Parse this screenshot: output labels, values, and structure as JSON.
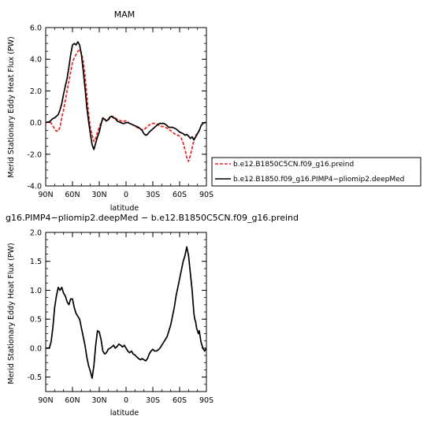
{
  "chart_data": [
    {
      "type": "line",
      "title": "MAM",
      "xlabel": "latitude",
      "ylabel": "Merid Stationary Eddy Heat Flux (PW)",
      "xlim": [
        90,
        -90
      ],
      "ylim": [
        -4.0,
        6.0
      ],
      "xticks": [
        90,
        60,
        30,
        0,
        -30,
        -60,
        -90
      ],
      "xtick_labels": [
        "90N",
        "60N",
        "30N",
        "0",
        "30S",
        "60S",
        "90S"
      ],
      "yticks": [
        -4.0,
        -2.0,
        0.0,
        2.0,
        4.0,
        6.0
      ],
      "ytick_labels": [
        "-4.0",
        "-2.0",
        "0.0",
        "2.0",
        "4.0",
        "6.0"
      ],
      "legend_position": "right",
      "series": [
        {
          "name": "b.e12.B1850C5CN.f09_g16.preind",
          "color": "#e8231c",
          "dash": "dashed",
          "x": [
            90,
            85,
            82,
            79,
            76,
            74,
            72,
            70,
            68,
            66,
            64,
            62,
            60,
            58,
            56,
            54,
            52,
            50,
            48,
            46,
            44,
            42,
            40,
            38,
            36,
            34,
            32,
            30,
            28,
            26,
            24,
            22,
            20,
            18,
            16,
            14,
            12,
            10,
            8,
            6,
            4,
            2,
            0,
            -2,
            -4,
            -6,
            -8,
            -10,
            -12,
            -14,
            -16,
            -18,
            -20,
            -22,
            -24,
            -26,
            -28,
            -30,
            -32,
            -34,
            -36,
            -38,
            -40,
            -42,
            -44,
            -46,
            -48,
            -50,
            -52,
            -54,
            -56,
            -58,
            -60,
            -62,
            -64,
            -66,
            -68,
            -70,
            -72,
            -74,
            -76,
            -78,
            -80,
            -82,
            -84,
            -86,
            -88,
            -90
          ],
          "values": [
            0.0,
            0.05,
            -0.2,
            -0.5,
            -0.55,
            -0.3,
            0.3,
            0.8,
            1.4,
            2.0,
            2.6,
            3.2,
            3.8,
            4.1,
            4.3,
            4.5,
            4.6,
            4.4,
            3.9,
            3.0,
            1.8,
            0.6,
            -0.3,
            -0.8,
            -1.2,
            -1.0,
            -0.6,
            -0.3,
            0.0,
            0.2,
            0.25,
            0.1,
            0.15,
            0.3,
            0.4,
            0.35,
            0.3,
            0.2,
            0.2,
            0.1,
            0.05,
            0.1,
            0.1,
            0.05,
            -0.05,
            -0.1,
            -0.15,
            -0.25,
            -0.3,
            -0.35,
            -0.4,
            -0.45,
            -0.45,
            -0.35,
            -0.25,
            -0.15,
            -0.1,
            -0.05,
            -0.05,
            -0.1,
            -0.15,
            -0.2,
            -0.25,
            -0.25,
            -0.3,
            -0.35,
            -0.45,
            -0.5,
            -0.6,
            -0.7,
            -0.75,
            -0.8,
            -0.85,
            -1.0,
            -1.3,
            -1.7,
            -2.2,
            -2.45,
            -2.1,
            -1.6,
            -1.1,
            -0.8,
            -0.7,
            -0.5,
            -0.2,
            -0.05,
            0.0,
            0.0
          ]
        },
        {
          "name": "b.e12.B1850.f09_g16.PIMP4−pliomip2.deepMed",
          "color": "#000000",
          "dash": "solid",
          "x": [
            90,
            86,
            84,
            82,
            80,
            78,
            76,
            74,
            72,
            70,
            68,
            66,
            64,
            62,
            60,
            58,
            56,
            54,
            52,
            50,
            48,
            46,
            44,
            42,
            40,
            38,
            36,
            34,
            32,
            30,
            28,
            26,
            24,
            22,
            20,
            18,
            16,
            14,
            12,
            10,
            8,
            6,
            4,
            2,
            0,
            -2,
            -4,
            -6,
            -8,
            -10,
            -12,
            -14,
            -16,
            -18,
            -20,
            -22,
            -24,
            -26,
            -28,
            -30,
            -32,
            -34,
            -36,
            -38,
            -40,
            -42,
            -44,
            -46,
            -48,
            -50,
            -52,
            -54,
            -56,
            -58,
            -60,
            -62,
            -64,
            -66,
            -68,
            -70,
            -72,
            -74,
            -76,
            -78,
            -80,
            -82,
            -84,
            -86,
            -88,
            -90
          ],
          "values": [
            0.0,
            0.05,
            0.15,
            0.25,
            0.3,
            0.4,
            0.5,
            0.8,
            1.2,
            1.8,
            2.3,
            2.8,
            3.5,
            4.3,
            4.9,
            5.0,
            4.9,
            5.1,
            4.9,
            4.3,
            3.3,
            2.2,
            1.0,
            0.1,
            -0.7,
            -1.4,
            -1.7,
            -1.3,
            -0.9,
            -0.6,
            -0.1,
            0.3,
            0.2,
            0.1,
            0.2,
            0.35,
            0.4,
            0.3,
            0.25,
            0.1,
            0.05,
            0.0,
            -0.05,
            -0.05,
            0.0,
            0.0,
            -0.05,
            -0.1,
            -0.15,
            -0.2,
            -0.25,
            -0.3,
            -0.4,
            -0.5,
            -0.7,
            -0.8,
            -0.75,
            -0.6,
            -0.5,
            -0.4,
            -0.3,
            -0.2,
            -0.1,
            -0.05,
            -0.05,
            -0.05,
            -0.1,
            -0.2,
            -0.3,
            -0.3,
            -0.3,
            -0.35,
            -0.4,
            -0.5,
            -0.6,
            -0.65,
            -0.7,
            -0.8,
            -0.75,
            -0.85,
            -1.0,
            -0.9,
            -1.1,
            -0.9,
            -0.7,
            -0.5,
            -0.2,
            -0.05,
            0.0,
            0.0
          ]
        }
      ]
    },
    {
      "type": "line",
      "title": "g16.PIMP4−pliomip2.deepMed − b.e12.B1850C5CN.f09_g16.preind",
      "xlabel": "latitude",
      "ylabel": "Merid Stationary Eddy Heat Flux (PW)",
      "xlim": [
        90,
        -90
      ],
      "ylim": [
        -0.75,
        2.0
      ],
      "xticks": [
        90,
        60,
        30,
        0,
        -30,
        -60,
        -90
      ],
      "xtick_labels": [
        "90N",
        "60N",
        "30N",
        "0",
        "30S",
        "60S",
        "90S"
      ],
      "yticks": [
        -0.5,
        0.0,
        0.5,
        1.0,
        1.5,
        2.0
      ],
      "ytick_labels": [
        "-0.5",
        "0.0",
        "0.5",
        "1.0",
        "1.5",
        "2.0"
      ],
      "series": [
        {
          "name": "",
          "color": "#000000",
          "dash": "solid",
          "x": [
            90,
            88,
            86,
            84,
            82,
            80,
            78,
            76,
            74,
            72,
            70,
            68,
            66,
            64,
            62,
            60,
            58,
            56,
            54,
            52,
            50,
            48,
            46,
            44,
            42,
            40,
            38,
            36,
            34,
            32,
            30,
            28,
            26,
            24,
            22,
            20,
            18,
            16,
            14,
            12,
            10,
            8,
            6,
            4,
            2,
            0,
            -2,
            -4,
            -6,
            -8,
            -10,
            -12,
            -14,
            -16,
            -18,
            -20,
            -22,
            -24,
            -26,
            -28,
            -30,
            -32,
            -34,
            -36,
            -38,
            -40,
            -42,
            -44,
            -46,
            -48,
            -50,
            -52,
            -54,
            -56,
            -58,
            -60,
            -62,
            -64,
            -66,
            -68,
            -70,
            -72,
            -74,
            -75,
            -76,
            -77,
            -78,
            -79,
            -80,
            -81,
            -82,
            -83,
            -84,
            -86,
            -88,
            -90
          ],
          "values": [
            0.0,
            0.0,
            0.0,
            0.1,
            0.35,
            0.7,
            0.9,
            1.05,
            1.0,
            1.05,
            0.95,
            0.9,
            0.8,
            0.75,
            0.85,
            0.85,
            0.7,
            0.6,
            0.55,
            0.5,
            0.35,
            0.2,
            0.05,
            -0.15,
            -0.3,
            -0.4,
            -0.52,
            -0.3,
            0.05,
            0.3,
            0.28,
            0.15,
            -0.05,
            -0.1,
            -0.08,
            -0.02,
            0.0,
            0.02,
            0.05,
            0.0,
            0.03,
            0.07,
            0.05,
            0.02,
            0.05,
            0.0,
            -0.05,
            -0.08,
            -0.05,
            -0.1,
            -0.12,
            -0.15,
            -0.18,
            -0.2,
            -0.18,
            -0.2,
            -0.22,
            -0.18,
            -0.1,
            -0.05,
            -0.02,
            -0.05,
            -0.05,
            -0.03,
            0.0,
            0.05,
            0.1,
            0.15,
            0.2,
            0.3,
            0.4,
            0.55,
            0.7,
            0.9,
            1.05,
            1.2,
            1.35,
            1.5,
            1.6,
            1.75,
            1.6,
            1.3,
            1.0,
            0.8,
            0.6,
            0.5,
            0.45,
            0.35,
            0.3,
            0.25,
            0.3,
            0.2,
            0.1,
            0.0,
            -0.05,
            0.0
          ]
        }
      ]
    }
  ]
}
